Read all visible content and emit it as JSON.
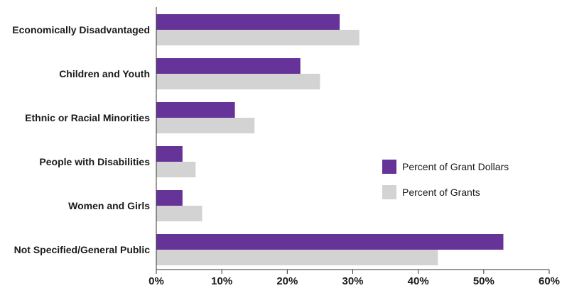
{
  "chart_data": {
    "type": "bar",
    "orientation": "horizontal",
    "categories": [
      "Economically Disadvantaged",
      "Children and Youth",
      "Ethnic or Racial Minorities",
      "People with Disabilities",
      "Women and Girls",
      "Not Specified/General Public"
    ],
    "series": [
      {
        "name": "Percent of Grant Dollars",
        "color": "#663399",
        "values": [
          28,
          22,
          12,
          4,
          4,
          53
        ]
      },
      {
        "name": "Percent of Grants",
        "color": "#d3d3d3",
        "values": [
          31,
          25,
          15,
          6,
          7,
          43
        ]
      }
    ],
    "xlim": [
      0,
      60
    ],
    "xticks": [
      0,
      10,
      20,
      30,
      40,
      50,
      60
    ],
    "xtick_labels": [
      "0%",
      "10%",
      "20%",
      "30%",
      "40%",
      "50%",
      "60%"
    ],
    "title": "",
    "xlabel": "",
    "ylabel": "",
    "grid": false,
    "legend_position": "right"
  }
}
